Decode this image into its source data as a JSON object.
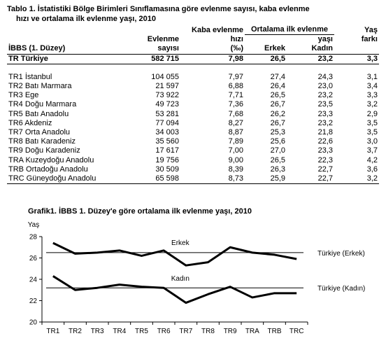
{
  "table": {
    "title_line1": "Tablo 1. İstatistiki Bölge Birimleri Sınıflamasına göre evlenme sayısı, kaba evlenme",
    "title_line2": "hızı ve ortalama ilk evlenme yaşı, 2010",
    "headers": {
      "region": "İBBS (1. Düzey)",
      "count_l1": "Evlenme",
      "count_l2": "sayısı",
      "rate_l1": "Kaba evlenme",
      "rate_l2": "hızı",
      "rate_l3": "(‰)",
      "avg_age_l1": "Ortalama ilk evlenme",
      "avg_age_l2": "yaşı",
      "male": "Erkek",
      "female": "Kadın",
      "diff_l1": "Yaş",
      "diff_l2": "farkı"
    },
    "total": {
      "name": "TR Türkiye",
      "count": "582 715",
      "rate": "7,98",
      "male": "26,5",
      "female": "23,2",
      "diff": "3,3"
    },
    "rows": [
      {
        "name": "TR1 İstanbul",
        "count": "104 055",
        "rate": "7,97",
        "male": "27,4",
        "female": "24,3",
        "diff": "3,1"
      },
      {
        "name": "TR2 Batı Marmara",
        "count": "21 597",
        "rate": "6,88",
        "male": "26,4",
        "female": "23,0",
        "diff": "3,4"
      },
      {
        "name": "TR3 Ege",
        "count": "73 922",
        "rate": "7,71",
        "male": "26,5",
        "female": "23,2",
        "diff": "3,3"
      },
      {
        "name": "TR4 Doğu Marmara",
        "count": "49 723",
        "rate": "7,36",
        "male": "26,7",
        "female": "23,5",
        "diff": "3,2"
      },
      {
        "name": "TR5 Batı Anadolu",
        "count": "53 281",
        "rate": "7,68",
        "male": "26,2",
        "female": "23,3",
        "diff": "2,9"
      },
      {
        "name": "TR6 Akdeniz",
        "count": "77 094",
        "rate": "8,27",
        "male": "26,7",
        "female": "23,2",
        "diff": "3,5"
      },
      {
        "name": "TR7 Orta Anadolu",
        "count": "34 003",
        "rate": "8,87",
        "male": "25,3",
        "female": "21,8",
        "diff": "3,5"
      },
      {
        "name": "TR8 Batı Karadeniz",
        "count": "35 560",
        "rate": "7,89",
        "male": "25,6",
        "female": "22,6",
        "diff": "3,0"
      },
      {
        "name": "TR9 Doğu Karadeniz",
        "count": "17 617",
        "rate": "7,00",
        "male": "27,0",
        "female": "23,3",
        "diff": "3,7"
      },
      {
        "name": "TRA Kuzeydoğu Anadolu",
        "count": "19 756",
        "rate": "9,00",
        "male": "26,5",
        "female": "22,3",
        "diff": "4,2"
      },
      {
        "name": "TRB Ortadoğu Anadolu",
        "count": "30 509",
        "rate": "8,39",
        "male": "26,3",
        "female": "22,7",
        "diff": "3,6"
      },
      {
        "name": "TRC Güneydoğu Anadolu",
        "count": "65 598",
        "rate": "8,73",
        "male": "25,9",
        "female": "22,7",
        "diff": "3,2"
      }
    ]
  },
  "chart_data": {
    "type": "line",
    "title": "Grafik1. İBBS 1. Düzey'e göre ortalama ilk evlenme yaşı, 2010",
    "ylabel": "Yaş",
    "xlabel": "",
    "categories": [
      "TR1",
      "TR2",
      "TR3",
      "TR4",
      "TR5",
      "TR6",
      "TR7",
      "TR8",
      "TR9",
      "TRA",
      "TRB",
      "TRC"
    ],
    "ylim": [
      20,
      28
    ],
    "yticks": [
      "20",
      "22",
      "24",
      "26",
      "28"
    ],
    "grid": false,
    "series": [
      {
        "name": "Erkek",
        "values": [
          27.4,
          26.4,
          26.5,
          26.7,
          26.2,
          26.7,
          25.3,
          25.6,
          27.0,
          26.5,
          26.3,
          25.9
        ]
      },
      {
        "name": "Kadın",
        "values": [
          24.3,
          23.0,
          23.2,
          23.5,
          23.3,
          23.2,
          21.8,
          22.6,
          23.3,
          22.3,
          22.7,
          22.7
        ]
      }
    ],
    "reference_lines": [
      {
        "name": "Türkiye (Erkek)",
        "value": 26.5
      },
      {
        "name": "Türkiye (Kadın)",
        "value": 23.2
      }
    ]
  }
}
